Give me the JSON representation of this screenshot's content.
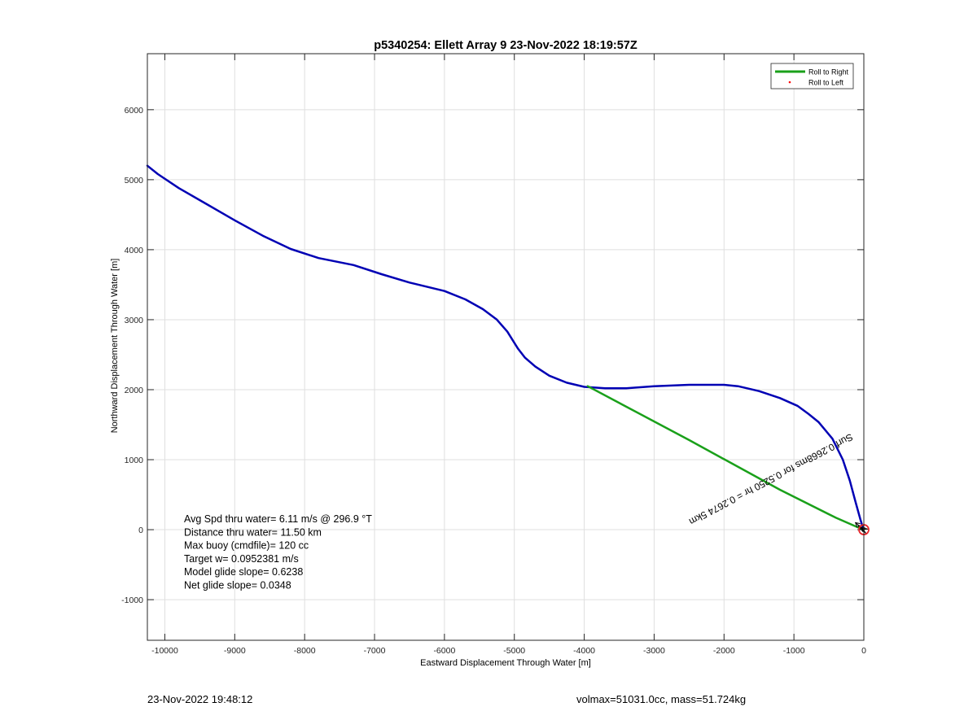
{
  "chart_data": {
    "type": "line",
    "title": "p5340254: Ellett Array 9 23-Nov-2022 18:19:57Z",
    "xlabel": "Eastward Displacement Through Water [m]",
    "ylabel": "Northward Displacement Through Water [m]",
    "xlim": [
      -10250,
      0
    ],
    "ylim": [
      -1580,
      6800
    ],
    "grid": true,
    "x_ticks": [
      -10000,
      -9000,
      -8000,
      -7000,
      -6000,
      -5000,
      -4000,
      -3000,
      -2000,
      -1000,
      0
    ],
    "y_ticks": [
      -1000,
      0,
      1000,
      2000,
      3000,
      4000,
      5000,
      6000
    ],
    "legend_placement": "top-right",
    "legend": [
      {
        "label": "Roll to Right",
        "color": "#1aa01a",
        "marker": "line"
      },
      {
        "label": "Roll to Left",
        "color": "#ff0000",
        "marker": "dot"
      }
    ],
    "series": [
      {
        "color": "#0000b4",
        "x": [
          -10250,
          -10100,
          -9800,
          -9400,
          -9000,
          -8600,
          -8200,
          -7800,
          -7300,
          -6900,
          -6500,
          -6000,
          -5700,
          -5450,
          -5250,
          -5100,
          -4950,
          -4850,
          -4700,
          -4500,
          -4250,
          -4000,
          -3700,
          -3400,
          -3000,
          -2500,
          -2000,
          -1800,
          -1500,
          -1200,
          -950,
          -800,
          -650,
          -450,
          -300,
          -200,
          -120,
          -50,
          -10
        ],
        "y": [
          5200,
          5080,
          4880,
          4650,
          4420,
          4200,
          4010,
          3880,
          3780,
          3650,
          3530,
          3410,
          3290,
          3150,
          3000,
          2830,
          2590,
          2460,
          2330,
          2200,
          2100,
          2040,
          2020,
          2020,
          2050,
          2070,
          2070,
          2050,
          1980,
          1880,
          1770,
          1660,
          1540,
          1300,
          1000,
          700,
          400,
          150,
          20
        ]
      },
      {
        "color": "#1aa01a",
        "x": [
          -3950,
          -2500,
          -1200,
          -400,
          -100,
          0
        ],
        "y": [
          2050,
          1280,
          570,
          170,
          40,
          0
        ]
      }
    ],
    "current_arrows": {
      "color": "#000000",
      "x": [
        -120,
        -80,
        -50,
        -30,
        -20,
        -10
      ],
      "y": [
        100,
        60,
        30,
        20,
        10,
        5
      ],
      "label": "Avg Spd thru water= 6.11 m/s @ 296.9 °T"
    },
    "vector_label": {
      "text": "Surf 0.2668ms for 0.5250 hr = 0.2674 5km",
      "x": -1350,
      "y": 760,
      "rotate_deg": 152
    },
    "end_marker": {
      "x": 0,
      "y": 0,
      "color": "#e8262b"
    },
    "annotations": [
      "Avg Spd thru water=  6.11 m/s @ 296.9 °T",
      "Distance thru water= 11.50 km",
      "Max buoy (cmdfile)= 120 cc",
      "Target w= 0.0952381 m/s",
      "Model glide slope= 0.6238",
      "Net glide slope= 0.0348"
    ]
  },
  "footer": {
    "left": "23-Nov-2022 19:48:12",
    "right": "volmax=51031.0cc, mass=51.724kg"
  }
}
